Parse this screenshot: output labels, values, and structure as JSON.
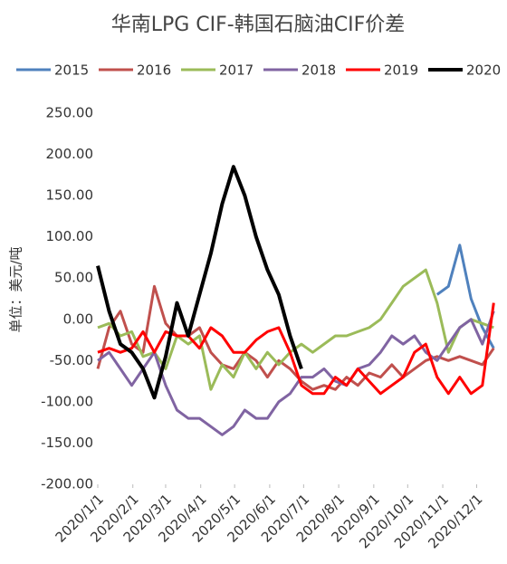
{
  "chart_data": {
    "type": "line",
    "title": "华南LPG CIF-韩国石脑油CIF价差",
    "y_label": "单位：美元/吨",
    "x": [
      0,
      10,
      20,
      30,
      40,
      50,
      60,
      70,
      80,
      90,
      100,
      110,
      120,
      130,
      140,
      150,
      160,
      170,
      180,
      190,
      200,
      210,
      220,
      230,
      240,
      250,
      260,
      270,
      280,
      290,
      300,
      310,
      320,
      330,
      340,
      350
    ],
    "xlim": [
      0,
      357
    ],
    "xticks": [
      {
        "value": 0,
        "label": "2020/1/1"
      },
      {
        "value": 31,
        "label": "2020/2/1"
      },
      {
        "value": 60,
        "label": "2020/3/1"
      },
      {
        "value": 91,
        "label": "2020/4/1"
      },
      {
        "value": 121,
        "label": "2020/5/1"
      },
      {
        "value": 152,
        "label": "2020/6/1"
      },
      {
        "value": 182,
        "label": "2020/7/1"
      },
      {
        "value": 213,
        "label": "2020/8/1"
      },
      {
        "value": 244,
        "label": "2020/9/1"
      },
      {
        "value": 274,
        "label": "2020/10/1"
      },
      {
        "value": 305,
        "label": "2020/11/1"
      },
      {
        "value": 335,
        "label": "2020/12/1"
      }
    ],
    "ylim": [
      -200,
      250
    ],
    "yticks": [
      {
        "value": 250,
        "label": "250.00"
      },
      {
        "value": 200,
        "label": "200.00"
      },
      {
        "value": 150,
        "label": "150.00"
      },
      {
        "value": 100,
        "label": "100.00"
      },
      {
        "value": 50,
        "label": "50.00"
      },
      {
        "value": 0,
        "label": "0.00"
      },
      {
        "value": -50,
        "label": "-50.00"
      },
      {
        "value": -100,
        "label": "-100.00"
      },
      {
        "value": -150,
        "label": "-150.00"
      },
      {
        "value": -200,
        "label": "-200.00"
      }
    ],
    "grid": false,
    "legend": "top",
    "series": [
      {
        "name": "2015",
        "color": "#4f81bd",
        "width": 3,
        "values": [
          null,
          null,
          null,
          null,
          null,
          null,
          null,
          null,
          null,
          null,
          null,
          null,
          null,
          null,
          null,
          null,
          null,
          null,
          null,
          null,
          null,
          null,
          null,
          null,
          null,
          null,
          null,
          null,
          null,
          null,
          30,
          40,
          90,
          25,
          -10,
          -35
        ]
      },
      {
        "name": "2016",
        "color": "#c0504d",
        "width": 3,
        "values": [
          -60,
          -10,
          10,
          -30,
          -40,
          40,
          -5,
          -20,
          -20,
          -10,
          -40,
          -55,
          -60,
          -40,
          -50,
          -70,
          -50,
          -60,
          -75,
          -85,
          -80,
          -85,
          -70,
          -80,
          -65,
          -70,
          -55,
          -70,
          -60,
          -50,
          -45,
          -50,
          -45,
          -50,
          -55,
          -35
        ]
      },
      {
        "name": "2017",
        "color": "#9bbb59",
        "width": 3,
        "values": [
          -10,
          -5,
          -20,
          -15,
          -45,
          -40,
          -60,
          -20,
          -30,
          -20,
          -85,
          -55,
          -70,
          -40,
          -60,
          -40,
          -55,
          -40,
          -30,
          -40,
          -30,
          -20,
          -20,
          -15,
          -10,
          0,
          20,
          40,
          50,
          60,
          20,
          -40,
          -10,
          0,
          -5,
          -10
        ]
      },
      {
        "name": "2018",
        "color": "#8064a2",
        "width": 3,
        "values": [
          -50,
          -40,
          -60,
          -80,
          -60,
          -40,
          -80,
          -110,
          -120,
          -120,
          -130,
          -140,
          -130,
          -110,
          -120,
          -120,
          -100,
          -90,
          -70,
          -70,
          -60,
          -75,
          -80,
          -60,
          -55,
          -40,
          -20,
          -30,
          -20,
          -40,
          -50,
          -30,
          -10,
          0,
          -30,
          10
        ]
      },
      {
        "name": "2019",
        "color": "#ff0000",
        "width": 3,
        "values": [
          -40,
          -35,
          -40,
          -35,
          -15,
          -40,
          -15,
          -20,
          -20,
          -35,
          -10,
          -20,
          -40,
          -40,
          -25,
          -15,
          -10,
          -40,
          -80,
          -90,
          -90,
          -70,
          -80,
          -60,
          -75,
          -90,
          -80,
          -70,
          -40,
          -30,
          -70,
          -90,
          -70,
          -90,
          -80,
          20
        ]
      },
      {
        "name": "2020",
        "color": "#000000",
        "width": 4,
        "values": [
          65,
          10,
          -30,
          -40,
          -60,
          -95,
          -45,
          20,
          -20,
          30,
          80,
          140,
          185,
          150,
          100,
          60,
          30,
          -20,
          -60,
          null,
          null,
          null,
          null,
          null,
          null,
          null,
          null,
          null,
          null,
          null,
          null,
          null,
          null,
          null,
          null,
          null
        ]
      }
    ]
  }
}
